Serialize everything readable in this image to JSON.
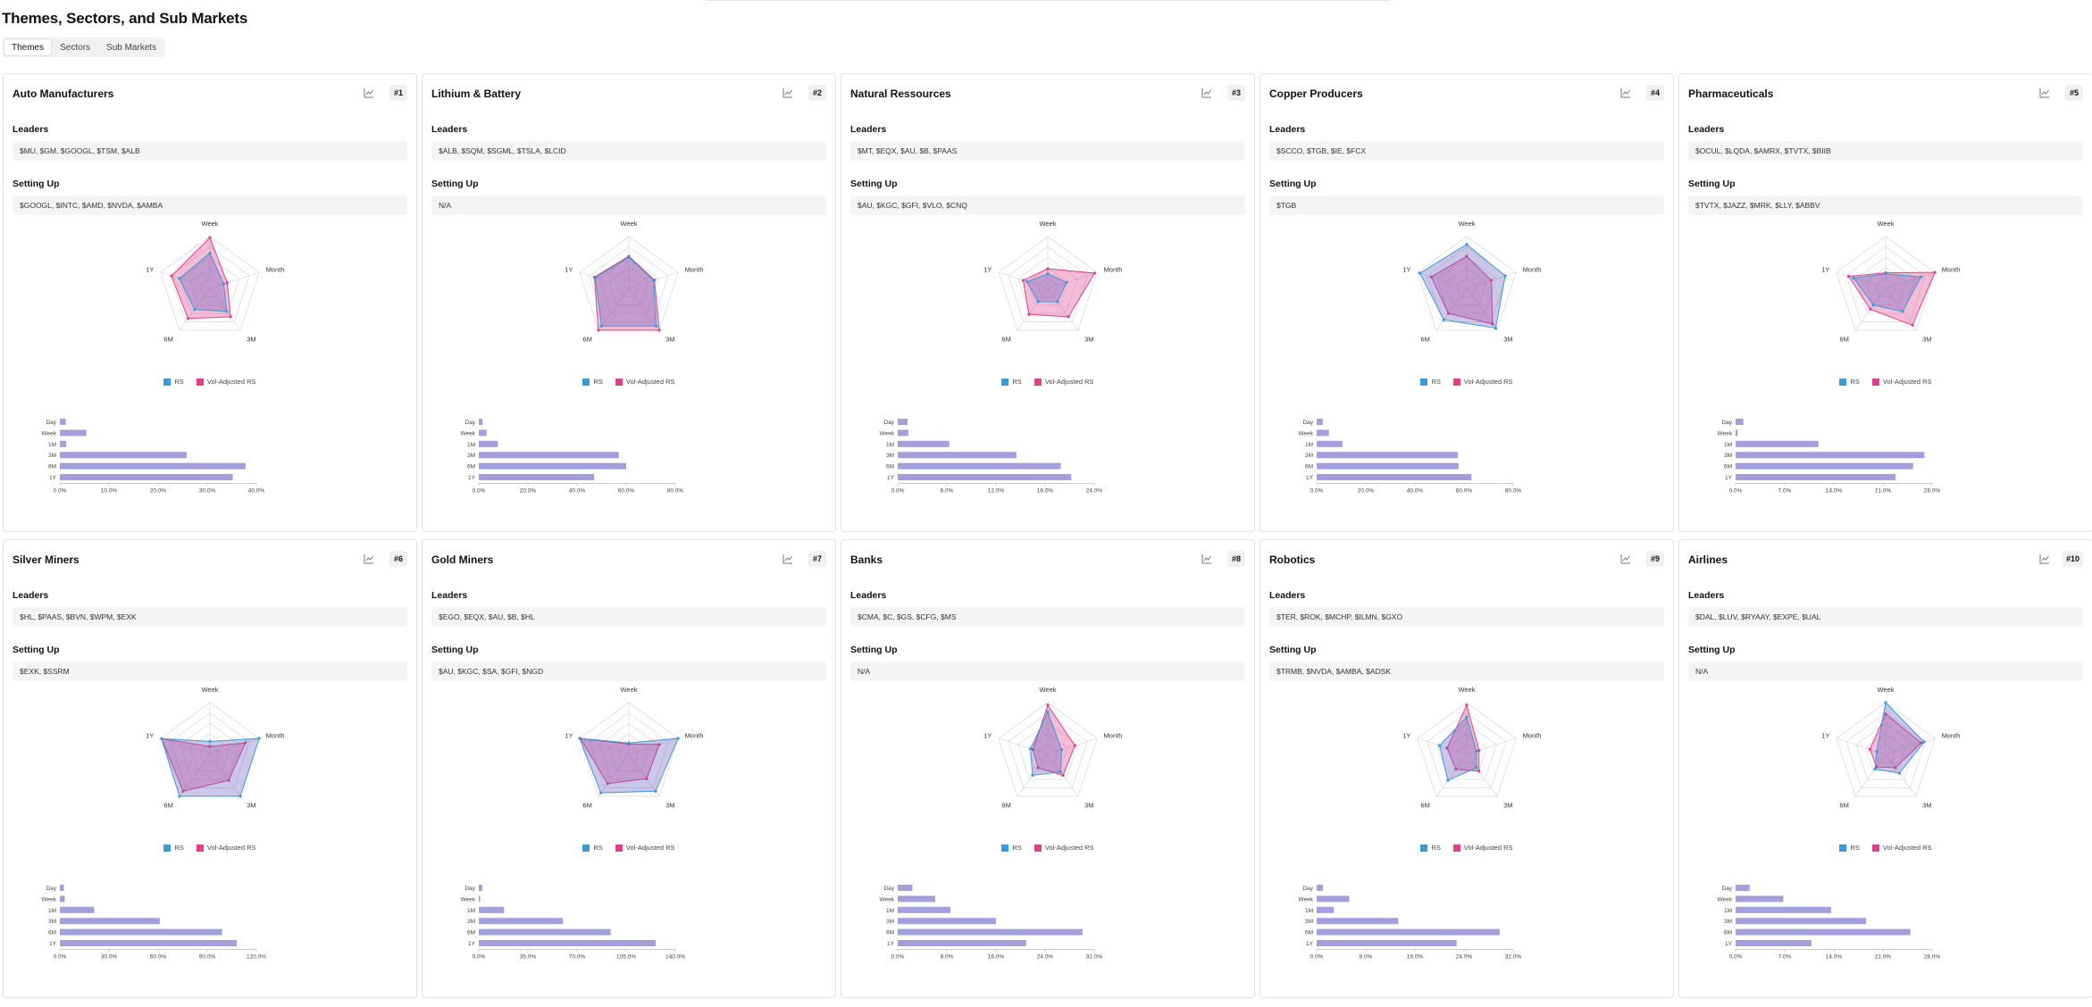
{
  "page": {
    "title": "Themes, Sectors, and Sub Markets",
    "tabs": [
      {
        "label": "Themes",
        "active": true
      },
      {
        "label": "Sectors",
        "active": false
      },
      {
        "label": "Sub Markets",
        "active": false
      }
    ]
  },
  "labels": {
    "leaders": "Leaders",
    "setting_up": "Setting Up"
  },
  "colors": {
    "rs": "#3a9ad9",
    "vol_rs": "#e0408a",
    "bar": "#a39fdc"
  },
  "legend": {
    "rs": "RS",
    "vol": "Vol-Adjusted RS"
  },
  "radar_axes": [
    "Week",
    "Month",
    "3M",
    "6M",
    "1Y"
  ],
  "bar_categories": [
    "Day",
    "Week",
    "1M",
    "3M",
    "6M",
    "1Y"
  ],
  "cards": [
    {
      "title": "Auto Manufacturers",
      "rank": "#1",
      "leaders": "$MU, $GM, $GOOGL, $TSM, $ALB",
      "setting_up": "$GOOGL, $INTC, $AMD, $NVDA, $AMBA",
      "chart_data": {
        "type": "bar",
        "values": [
          1.2,
          5.4,
          1.3,
          25.8,
          37.8,
          35.2
        ],
        "ticks": [
          "0.0%",
          "10.0%",
          "20.0%",
          "30.0%",
          "40.0%"
        ],
        "xlim": [
          0,
          40
        ],
        "radar": {
          "rs": [
            0.68,
            0.28,
            0.55,
            0.5,
            0.62
          ],
          "vol": [
            0.98,
            0.35,
            0.68,
            0.72,
            0.78
          ]
        }
      }
    },
    {
      "title": "Lithium & Battery",
      "rank": "#2",
      "leaders": "$ALB, $SQM, $SGML, $TSLA, $LCID",
      "setting_up": "N/A",
      "chart_data": {
        "type": "bar",
        "values": [
          1.5,
          3.2,
          7.8,
          57.0,
          60.0,
          47.0
        ],
        "ticks": [
          "0.0%",
          "20.0%",
          "40.0%",
          "60.0%",
          "80.0%"
        ],
        "xlim": [
          0,
          80
        ],
        "radar": {
          "rs": [
            0.6,
            0.5,
            0.9,
            0.9,
            0.68
          ],
          "vol": [
            0.62,
            0.52,
            1.0,
            1.0,
            0.7
          ]
        }
      }
    },
    {
      "title": "Natural Ressources",
      "rank": "#3",
      "leaders": "$MT, $EQX, $AU, $B, $PAAS",
      "setting_up": "$AU, $KGC, $GFI, $VLO, $CNQ",
      "chart_data": {
        "type": "bar",
        "values": [
          1.2,
          1.3,
          6.3,
          14.5,
          19.9,
          21.2
        ],
        "ticks": [
          "0.0%",
          "6.0%",
          "12.0%",
          "18.0%",
          "24.0%"
        ],
        "xlim": [
          0,
          24
        ],
        "radar": {
          "rs": [
            0.28,
            0.38,
            0.32,
            0.32,
            0.42
          ],
          "vol": [
            0.38,
            0.95,
            0.68,
            0.62,
            0.5
          ]
        }
      }
    },
    {
      "title": "Copper Producers",
      "rank": "#4",
      "leaders": "$SCCO, $TGB, $IE, $FCX",
      "setting_up": "$TGB",
      "chart_data": {
        "type": "bar",
        "values": [
          2.5,
          5.0,
          10.5,
          57.5,
          57.8,
          63.0
        ],
        "ticks": [
          "0.0%",
          "20.0%",
          "40.0%",
          "60.0%",
          "80.0%"
        ],
        "xlim": [
          0,
          80
        ],
        "radar": {
          "rs": [
            0.85,
            0.78,
            0.95,
            0.75,
            0.95
          ],
          "vol": [
            0.62,
            0.5,
            0.85,
            0.6,
            0.72
          ]
        }
      }
    },
    {
      "title": "Pharmaceuticals",
      "rank": "#5",
      "leaders": "$OCUL, $LQDA, $AMRX, $TVTX, $BIIB",
      "setting_up": "$TVTX, $JAZZ, $MRK, $LLY, $ABBV",
      "chart_data": {
        "type": "bar",
        "values": [
          1.1,
          0.3,
          11.8,
          26.9,
          25.3,
          22.8
        ],
        "ticks": [
          "0.0%",
          "7.0%",
          "14.0%",
          "21.0%",
          "28.0%"
        ],
        "xlim": [
          0,
          28
        ],
        "radar": {
          "rs": [
            0.28,
            0.72,
            0.55,
            0.4,
            0.65
          ],
          "vol": [
            0.3,
            1.0,
            0.88,
            0.5,
            0.75
          ]
        }
      }
    },
    {
      "title": "Silver Miners",
      "rank": "#6",
      "leaders": "$HL, $PAAS, $BVN, $WPM, $EXK",
      "setting_up": "$EXK, $SSRM",
      "chart_data": {
        "type": "bar",
        "values": [
          2.5,
          3.0,
          21.0,
          61.0,
          99.0,
          108.0
        ],
        "ticks": [
          "0.0%",
          "30.0%",
          "60.0%",
          "90.0%",
          "120.0%"
        ],
        "xlim": [
          0,
          120
        ],
        "radar": {
          "rs": [
            0.25,
            1.0,
            1.0,
            1.0,
            0.98
          ],
          "vol": [
            0.15,
            0.72,
            0.62,
            0.88,
            0.98
          ]
        }
      }
    },
    {
      "title": "Gold Miners",
      "rank": "#7",
      "leaders": "$EGO, $EQX, $AU, $B, $HL",
      "setting_up": "$AU, $KGC, $SA, $GFI, $NGD",
      "chart_data": {
        "type": "bar",
        "values": [
          2.5,
          1.0,
          18.0,
          60.0,
          94.0,
          126.0
        ],
        "ticks": [
          "0.0%",
          "35.0%",
          "70.0%",
          "105.0%",
          "140.0%"
        ],
        "xlim": [
          0,
          140
        ],
        "radar": {
          "rs": [
            0.22,
            1.0,
            0.88,
            0.92,
            1.0
          ],
          "vol": [
            0.2,
            0.62,
            0.58,
            0.7,
            0.98
          ]
        }
      }
    },
    {
      "title": "Banks",
      "rank": "#8",
      "leaders": "$CMA, $C, $GS, $CFG, $MS",
      "setting_up": "N/A",
      "chart_data": {
        "type": "bar",
        "values": [
          2.4,
          6.1,
          8.6,
          16.0,
          30.1,
          20.9
        ],
        "ticks": [
          "0.0%",
          "8.0%",
          "16.0%",
          "24.0%",
          "32.0%"
        ],
        "xlim": [
          0,
          32
        ],
        "radar": {
          "rs": [
            0.82,
            0.28,
            0.42,
            0.5,
            0.35
          ],
          "vol": [
            0.95,
            0.55,
            0.5,
            0.32,
            0.3
          ]
        }
      }
    },
    {
      "title": "Robotics",
      "rank": "#9",
      "leaders": "$TER, $ROK, $MCHP, $ILMN, $GXO",
      "setting_up": "$TRMB, $NVDA, $AMBA, $ADSK",
      "chart_data": {
        "type": "bar",
        "values": [
          1.0,
          5.3,
          2.8,
          13.3,
          29.8,
          22.8
        ],
        "ticks": [
          "0.0%",
          "8.0%",
          "16.0%",
          "24.0%",
          "32.0%"
        ],
        "xlim": [
          0,
          32
        ],
        "radar": {
          "rs": [
            0.72,
            0.2,
            0.32,
            0.62,
            0.55
          ],
          "vol": [
            0.95,
            0.25,
            0.4,
            0.35,
            0.4
          ]
        }
      }
    },
    {
      "title": "Airlines",
      "rank": "#10",
      "leaders": "$DAL, $LUV, $RYAAY, $EXPE, $UAL",
      "setting_up": "N/A",
      "chart_data": {
        "type": "bar",
        "values": [
          2.0,
          6.8,
          13.6,
          18.6,
          24.9,
          10.8
        ],
        "ticks": [
          "0.0%",
          "7.0%",
          "14.0%",
          "21.0%",
          "28.0%"
        ],
        "xlim": [
          0,
          28
        ],
        "radar": {
          "rs": [
            1.0,
            0.78,
            0.45,
            0.35,
            0.18
          ],
          "vol": [
            0.78,
            0.72,
            0.32,
            0.3,
            0.32
          ]
        }
      }
    }
  ]
}
